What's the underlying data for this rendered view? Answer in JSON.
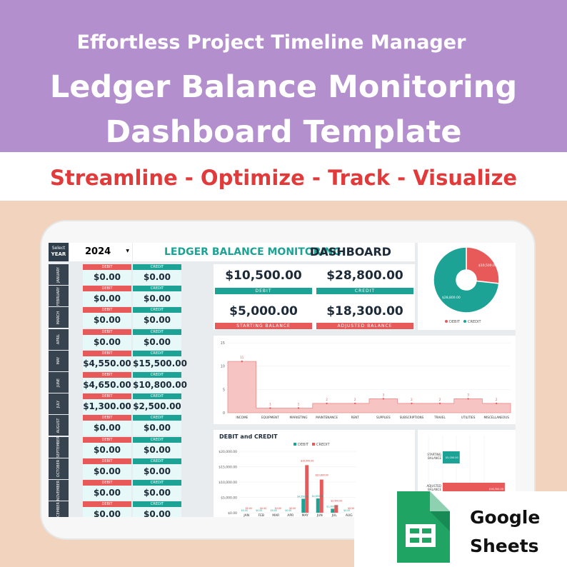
{
  "banner": {
    "subtitle": "Effortless Project Timeline Manager",
    "title_line1": "Ledger Balance Monitoring",
    "title_line2": "Dashboard Template",
    "tagline": "Streamline - Optimize - Track - Visualize"
  },
  "colors": {
    "banner": "#b48fce",
    "tagline": "#e23a3a",
    "debit": "#e85a5a",
    "credit": "#1ca395",
    "dark": "#1d2a38"
  },
  "dashboard": {
    "select_label": "Select",
    "year_label": "YEAR",
    "year_value": "2024",
    "title_part1": "LEDGER BALANCE MONITORING",
    "title_part2": "DASHBOARD",
    "debit_header": "DEBIT",
    "credit_header": "CREDIT",
    "months": [
      {
        "name": "JANUARY",
        "debit": "$0.00",
        "credit": "$0.00"
      },
      {
        "name": "FEBRUARY",
        "debit": "$0.00",
        "credit": "$0.00"
      },
      {
        "name": "MARCH",
        "debit": "$0.00",
        "credit": "$0.00"
      },
      {
        "name": "APRIL",
        "debit": "$0.00",
        "credit": "$0.00"
      },
      {
        "name": "MAY",
        "debit": "$4,550.00",
        "credit": "$15,500.00"
      },
      {
        "name": "JUNE",
        "debit": "$4,650.00",
        "credit": "$10,800.00"
      },
      {
        "name": "JULY",
        "debit": "$1,300.00",
        "credit": "$2,500.00"
      },
      {
        "name": "AUGUST",
        "debit": "$0.00",
        "credit": "$0.00"
      },
      {
        "name": "SEPTEMBER",
        "debit": "$0.00",
        "credit": "$0.00"
      },
      {
        "name": "OCTOBER",
        "debit": "$0.00",
        "credit": "$0.00"
      },
      {
        "name": "NOVEMBER",
        "debit": "$0.00",
        "credit": "$0.00"
      },
      {
        "name": "DECEMBER",
        "debit": "$0.00",
        "credit": "$0.00"
      }
    ],
    "kpis": {
      "debit_value": "$10,500.00",
      "debit_label": "DEBIT",
      "credit_value": "$28,800.00",
      "credit_label": "CREDIT",
      "starting_value": "$5,000.00",
      "starting_label": "STARTING BALANCE",
      "adjusted_value": "$18,300.00",
      "adjusted_label": "ADJUSTED BALANCE"
    }
  },
  "chart_data": [
    {
      "type": "pie",
      "labels": [
        "DEBIT",
        "CREDIT"
      ],
      "values": [
        10500,
        28800
      ],
      "data_labels": [
        "$10,500.00",
        "$28,800.00"
      ],
      "legend": "bottom"
    },
    {
      "type": "area",
      "categories": [
        "INCOME",
        "EQUIPMENT",
        "MARKETING",
        "MAINTENANCE",
        "RENT",
        "SUPPLIES",
        "SUBSCRIPTIONS",
        "TRAVEL",
        "UTILITIES",
        "MISCELLANEOUS"
      ],
      "values": [
        11,
        1,
        1,
        2,
        2,
        3,
        2,
        2,
        3,
        2
      ],
      "y_ticks": [
        "0",
        "5",
        "10",
        "15"
      ],
      "ylim": [
        0,
        15
      ]
    },
    {
      "type": "bar",
      "title": "DEBIT and CREDIT",
      "categories": [
        "JAN",
        "FEB",
        "MAR",
        "APR",
        "MAY",
        "JUN",
        "JUL",
        "AUG"
      ],
      "series": [
        {
          "name": "DEBIT",
          "values": [
            0,
            0,
            0,
            0,
            4550,
            4650,
            1300,
            0
          ]
        },
        {
          "name": "CREDIT",
          "values": [
            0,
            0,
            0,
            0,
            15500,
            10800,
            2500,
            0
          ]
        }
      ],
      "data_labels_debit": [
        "$0.00",
        "$0.00",
        "$0.00",
        "$0.00",
        "$4,550.00",
        "$4,650.00",
        "$1,300.00",
        "$0.00"
      ],
      "data_labels_credit": [
        "$0.00",
        "$0.00",
        "$0.00",
        "$0.00",
        "$15,500.00",
        "$10,800.00",
        "$2,500.00",
        "$0.00"
      ],
      "y_ticks": [
        "$0.00",
        "$5,000.00",
        "$10,000.00",
        "$15,000.00",
        "$20,000.00"
      ],
      "ylim": [
        0,
        20000
      ],
      "legend": "top"
    },
    {
      "type": "bar",
      "orientation": "horizontal",
      "categories": [
        "STARTING BALANCE",
        "ADJUSTED BALANCE"
      ],
      "values": [
        5000,
        18300
      ],
      "data_labels": [
        "$5,000.00",
        "$18,300.00"
      ]
    }
  ],
  "badge": {
    "line1": "Google",
    "line2": "Sheets",
    "icon": "google-sheets-icon"
  }
}
